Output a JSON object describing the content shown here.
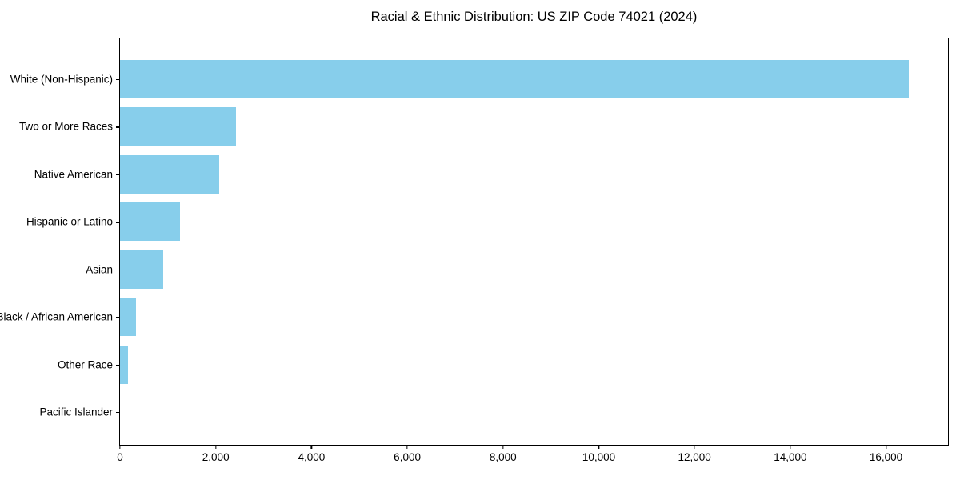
{
  "chart_data": {
    "type": "bar",
    "orientation": "horizontal",
    "title": "Racial & Ethnic Distribution: US ZIP Code 74021 (2024)",
    "categories": [
      "White (Non-Hispanic)",
      "Two or More Races",
      "Native American",
      "Hispanic or Latino",
      "Asian",
      "Black / African American",
      "Other Race",
      "Pacific Islander"
    ],
    "values": [
      16470,
      2420,
      2070,
      1250,
      900,
      340,
      160,
      0
    ],
    "xlabel": "",
    "ylabel": "",
    "xlim": [
      0,
      17294
    ],
    "x_ticks": [
      0,
      2000,
      4000,
      6000,
      8000,
      10000,
      12000,
      14000,
      16000
    ],
    "x_tick_labels": [
      "0",
      "2,000",
      "4,000",
      "6,000",
      "8,000",
      "10,000",
      "12,000",
      "14,000",
      "16,000"
    ],
    "grid": false,
    "legend": null,
    "bar_color": "#87CEEB",
    "background_color": "#ffffff",
    "spine_color": "#000000",
    "text_color": "#000000"
  }
}
